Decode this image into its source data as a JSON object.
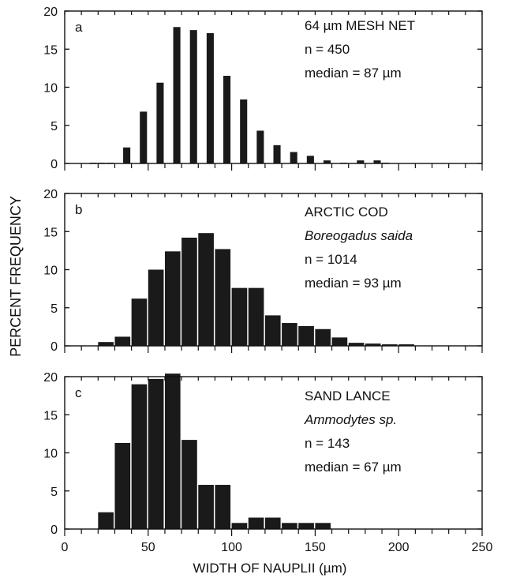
{
  "chart_data": [
    {
      "type": "bar",
      "panel_label": "a",
      "annotations": [
        "64 µm MESH NET",
        "n = 450",
        "median = 87 µm"
      ],
      "italic_lines": [],
      "x": [
        15,
        20,
        25,
        30,
        35,
        40,
        45,
        50,
        55,
        60,
        65,
        70,
        75,
        80,
        85,
        90,
        95,
        100,
        105,
        110,
        115,
        120,
        125,
        130,
        135,
        140,
        145,
        150,
        155,
        160,
        165,
        170,
        175,
        180,
        185,
        190
      ],
      "values": [
        0.1,
        0.1,
        0.1,
        0,
        2.1,
        0,
        6.8,
        0,
        10.6,
        0,
        17.9,
        0,
        17.5,
        0,
        17.1,
        0,
        11.5,
        0,
        8.4,
        0,
        4.3,
        0,
        2.4,
        0,
        1.5,
        0,
        1.0,
        0,
        0.4,
        0,
        0.1,
        0,
        0.4,
        0,
        0.4,
        0.1
      ],
      "ylim": [
        0,
        20
      ],
      "yticks": [
        0,
        5,
        10,
        15,
        20
      ]
    },
    {
      "type": "bar",
      "panel_label": "b",
      "annotations": [
        "ARCTIC COD",
        "Boreogadus saida",
        "n = 1014",
        "median = 93 µm"
      ],
      "italic_lines": [
        1
      ],
      "x": [
        20,
        30,
        40,
        50,
        60,
        70,
        80,
        90,
        100,
        110,
        120,
        130,
        140,
        150,
        160,
        170,
        180,
        190,
        200
      ],
      "values": [
        0.5,
        1.2,
        6.2,
        10.0,
        12.4,
        14.2,
        14.8,
        12.7,
        7.6,
        7.6,
        4.0,
        3.0,
        2.6,
        2.2,
        1.1,
        0.4,
        0.3,
        0.2,
        0.2
      ],
      "ylim": [
        0,
        20
      ],
      "yticks": [
        0,
        5,
        10,
        15,
        20
      ]
    },
    {
      "type": "bar",
      "panel_label": "c",
      "annotations": [
        "SAND LANCE",
        "Ammodytes sp.",
        "n = 143",
        "median = 67 µm"
      ],
      "italic_lines": [
        1
      ],
      "x": [
        20,
        30,
        40,
        50,
        60,
        70,
        80,
        90,
        100,
        110,
        120,
        130,
        140,
        150
      ],
      "values": [
        2.2,
        11.3,
        19.0,
        19.7,
        20.4,
        11.7,
        5.8,
        5.8,
        0.8,
        1.5,
        1.5,
        0.8,
        0.8,
        0.8
      ],
      "ylim": [
        0,
        20
      ],
      "yticks": [
        0,
        5,
        10,
        15,
        20
      ]
    }
  ],
  "shared": {
    "xlabel": "WIDTH OF NAUPLII (µm)",
    "ylabel": "PERCENT FREQUENCY",
    "xlim": [
      0,
      250
    ],
    "xticks": [
      0,
      50,
      100,
      150,
      200,
      250
    ],
    "bar_color": "#1a1a1a"
  }
}
